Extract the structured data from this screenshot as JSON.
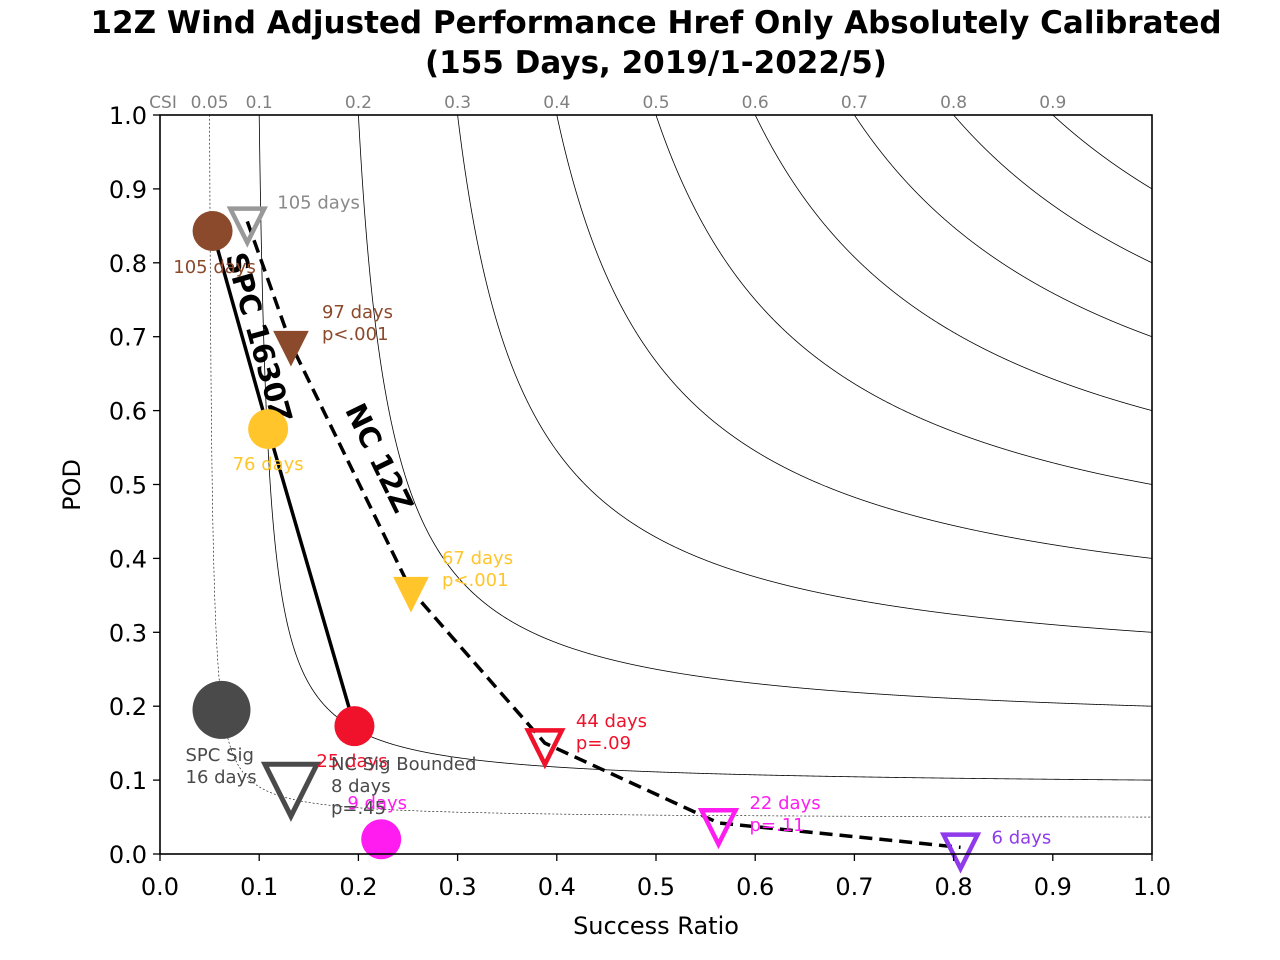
{
  "chart_data": {
    "type": "scatter",
    "title": "12Z Wind Adjusted Performance Href Only Absolutely Calibrated",
    "subtitle": "(155 Days, 2019/1-2022/5)",
    "xlabel": "Success Ratio",
    "ylabel": "POD",
    "xlim": [
      0.0,
      1.0
    ],
    "ylim": [
      0.0,
      1.0
    ],
    "x_ticks": [
      "0.0",
      "0.1",
      "0.2",
      "0.3",
      "0.4",
      "0.5",
      "0.6",
      "0.7",
      "0.8",
      "0.9",
      "1.0"
    ],
    "y_ticks": [
      "0.0",
      "0.1",
      "0.2",
      "0.3",
      "0.4",
      "0.5",
      "0.6",
      "0.7",
      "0.8",
      "0.9",
      "1.0"
    ],
    "csi_label": "CSI",
    "csi_contours": [
      0.05,
      0.1,
      0.2,
      0.3,
      0.4,
      0.5,
      0.6,
      0.7,
      0.8,
      0.9
    ],
    "csi_contour_labels": [
      "0.05",
      "0.1",
      "0.2",
      "0.3",
      "0.4",
      "0.5",
      "0.6",
      "0.7",
      "0.8",
      "0.9"
    ],
    "grid": false,
    "lines": [
      {
        "label": "SPC 1630Z",
        "style": "solid",
        "color": "#000000",
        "x": [
          0.053,
          0.109,
          0.196
        ],
        "y": [
          0.843,
          0.575,
          0.173
        ]
      },
      {
        "label": "NC 12Z",
        "style": "dashed",
        "color": "#000000",
        "x": [
          0.088,
          0.132,
          0.253,
          0.388,
          0.563,
          0.807
        ],
        "y": [
          0.856,
          0.69,
          0.357,
          0.15,
          0.042,
          0.009
        ]
      }
    ],
    "points": [
      {
        "marker": "circle",
        "color": "#8b4a2b",
        "x": 0.053,
        "y": 0.843,
        "label": "105 days"
      },
      {
        "marker": "circle",
        "color": "#ffc52a",
        "x": 0.109,
        "y": 0.575,
        "label": "76 days"
      },
      {
        "marker": "circle",
        "color": "#f0112a",
        "x": 0.196,
        "y": 0.173,
        "label": "25 days"
      },
      {
        "marker": "circle",
        "color": "#ff1cf0",
        "x": 0.223,
        "y": 0.02,
        "label": "9 days"
      },
      {
        "marker": "circle",
        "color": "#4a4a4a",
        "x": 0.062,
        "y": 0.195,
        "label": "SPC Sig\n16 days",
        "large": true
      },
      {
        "marker": "triangle-open",
        "color": "#999999",
        "x": 0.088,
        "y": 0.856,
        "label": "105 days"
      },
      {
        "marker": "triangle-filled",
        "color": "#8b4a2b",
        "x": 0.132,
        "y": 0.69,
        "label": "97 days\np<.001"
      },
      {
        "marker": "triangle-filled",
        "color": "#ffc52a",
        "x": 0.253,
        "y": 0.357,
        "label": "67 days\np<.001"
      },
      {
        "marker": "triangle-open",
        "color": "#f0112a",
        "x": 0.388,
        "y": 0.15,
        "label": "44 days\np=.09"
      },
      {
        "marker": "triangle-open",
        "color": "#ff1cf0",
        "x": 0.563,
        "y": 0.042,
        "label": "22 days\np=.11"
      },
      {
        "marker": "triangle-open",
        "color": "#8f3aeb",
        "x": 0.807,
        "y": 0.009,
        "label": "6 days"
      },
      {
        "marker": "triangle-open",
        "color": "#4a4a4a",
        "x": 0.132,
        "y": 0.095,
        "label": "NC Sig Bounded\n8 days\np=.45",
        "large": true
      }
    ]
  }
}
